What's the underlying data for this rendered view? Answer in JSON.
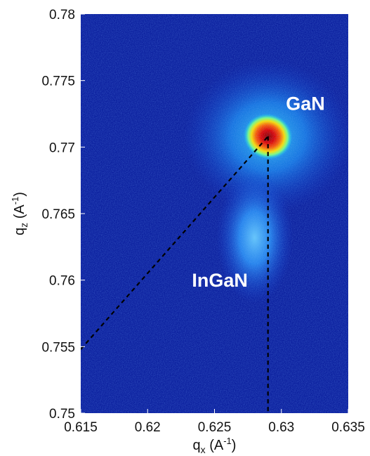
{
  "chart_data": {
    "type": "heatmap",
    "title": "",
    "xlabel": {
      "base": "q",
      "sub": "x",
      "rest": " (A",
      "sup": "-1",
      "close": ")"
    },
    "ylabel": {
      "base": "q",
      "sub": "z",
      "rest": " (A",
      "sup": "-1",
      "close": ")"
    },
    "xlim": [
      0.615,
      0.635
    ],
    "ylim": [
      0.75,
      0.78
    ],
    "x_ticks": [
      0.615,
      0.62,
      0.625,
      0.63,
      0.635
    ],
    "x_tick_labels": [
      "0.615",
      "0.62",
      "0.625",
      "0.63",
      "0.635"
    ],
    "y_ticks": [
      0.75,
      0.755,
      0.76,
      0.765,
      0.77,
      0.775,
      0.78
    ],
    "y_tick_labels": [
      "0.75",
      "0.755",
      "0.76",
      "0.765",
      "0.77",
      "0.775",
      "0.78"
    ],
    "colormap": "jet",
    "background_color": "#0b1f9e",
    "peaks": [
      {
        "name": "GaN",
        "qx": 0.629,
        "qz": 0.7708,
        "intensity": 1.0,
        "sigma_qx": 0.0007,
        "sigma_qz": 0.00065,
        "halo_sigma_qx": 0.0024,
        "halo_sigma_qz": 0.0022,
        "halo_intensity": 0.5
      },
      {
        "name": "InGaN",
        "qx": 0.628,
        "qz": 0.7632,
        "intensity": 0.4,
        "sigma_qx": 0.0011,
        "sigma_qz": 0.0019
      }
    ],
    "annotations": [
      {
        "text": "GaN",
        "qx": 0.6318,
        "qz": 0.7728
      },
      {
        "text": "InGaN",
        "qx": 0.6254,
        "qz": 0.7595
      }
    ],
    "dashed_lines": [
      {
        "name": "relaxation-line",
        "from": [
          0.615,
          0.7548
        ],
        "to": [
          0.629,
          0.7708
        ]
      },
      {
        "name": "strain-line",
        "from": [
          0.629,
          0.7708
        ],
        "to": [
          0.629,
          0.75
        ]
      }
    ]
  }
}
